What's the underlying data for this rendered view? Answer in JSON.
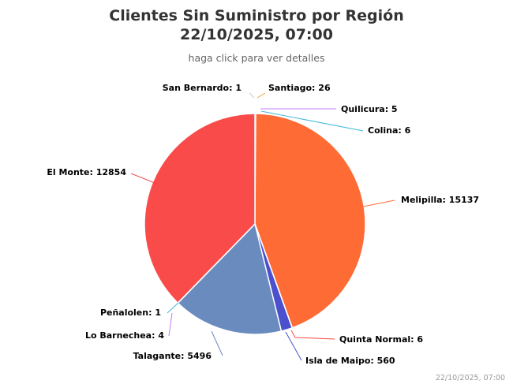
{
  "chart_data": {
    "type": "pie",
    "title_line1": "Clientes Sin Suministro por Región",
    "title_line2": "22/10/2025, 07:00",
    "subtitle": "haga click para ver detalles",
    "credit": "22/10/2025, 07:00",
    "slices": [
      {
        "name": "San Bernardo",
        "value": 1,
        "label": "San Bernardo: 1",
        "color": "#C5C7DB"
      },
      {
        "name": "Santiago",
        "value": 26,
        "label": "Santiago: 26",
        "color": "#F4A13A"
      },
      {
        "name": "Quilicura",
        "value": 5,
        "label": "Quilicura: 5",
        "color": "#C57BF5"
      },
      {
        "name": "Colina",
        "value": 6,
        "label": "Colina: 6",
        "color": "#3FB8D9"
      },
      {
        "name": "Melipilla",
        "value": 15137,
        "label": "Melipilla: 15137",
        "color": "#FF6B35"
      },
      {
        "name": "Quinta Normal",
        "value": 6,
        "label": "Quinta Normal: 6",
        "color": "#FA4B42"
      },
      {
        "name": "Isla de Maipo",
        "value": 560,
        "label": "Isla de Maipo: 560",
        "color": "#4B51CC"
      },
      {
        "name": "Talagante",
        "value": 5496,
        "label": "Talagante: 5496",
        "color": "#6A8BBE"
      },
      {
        "name": "Lo Barnechea",
        "value": 4,
        "label": "Lo Barnechea: 4",
        "color": "#C57BF5"
      },
      {
        "name": "Peñalolen",
        "value": 1,
        "label": "Peñalolen: 1",
        "color": "#3FB8D9"
      },
      {
        "name": "El Monte",
        "value": 12854,
        "label": "El Monte: 12854",
        "color": "#FA4B4B"
      }
    ]
  }
}
